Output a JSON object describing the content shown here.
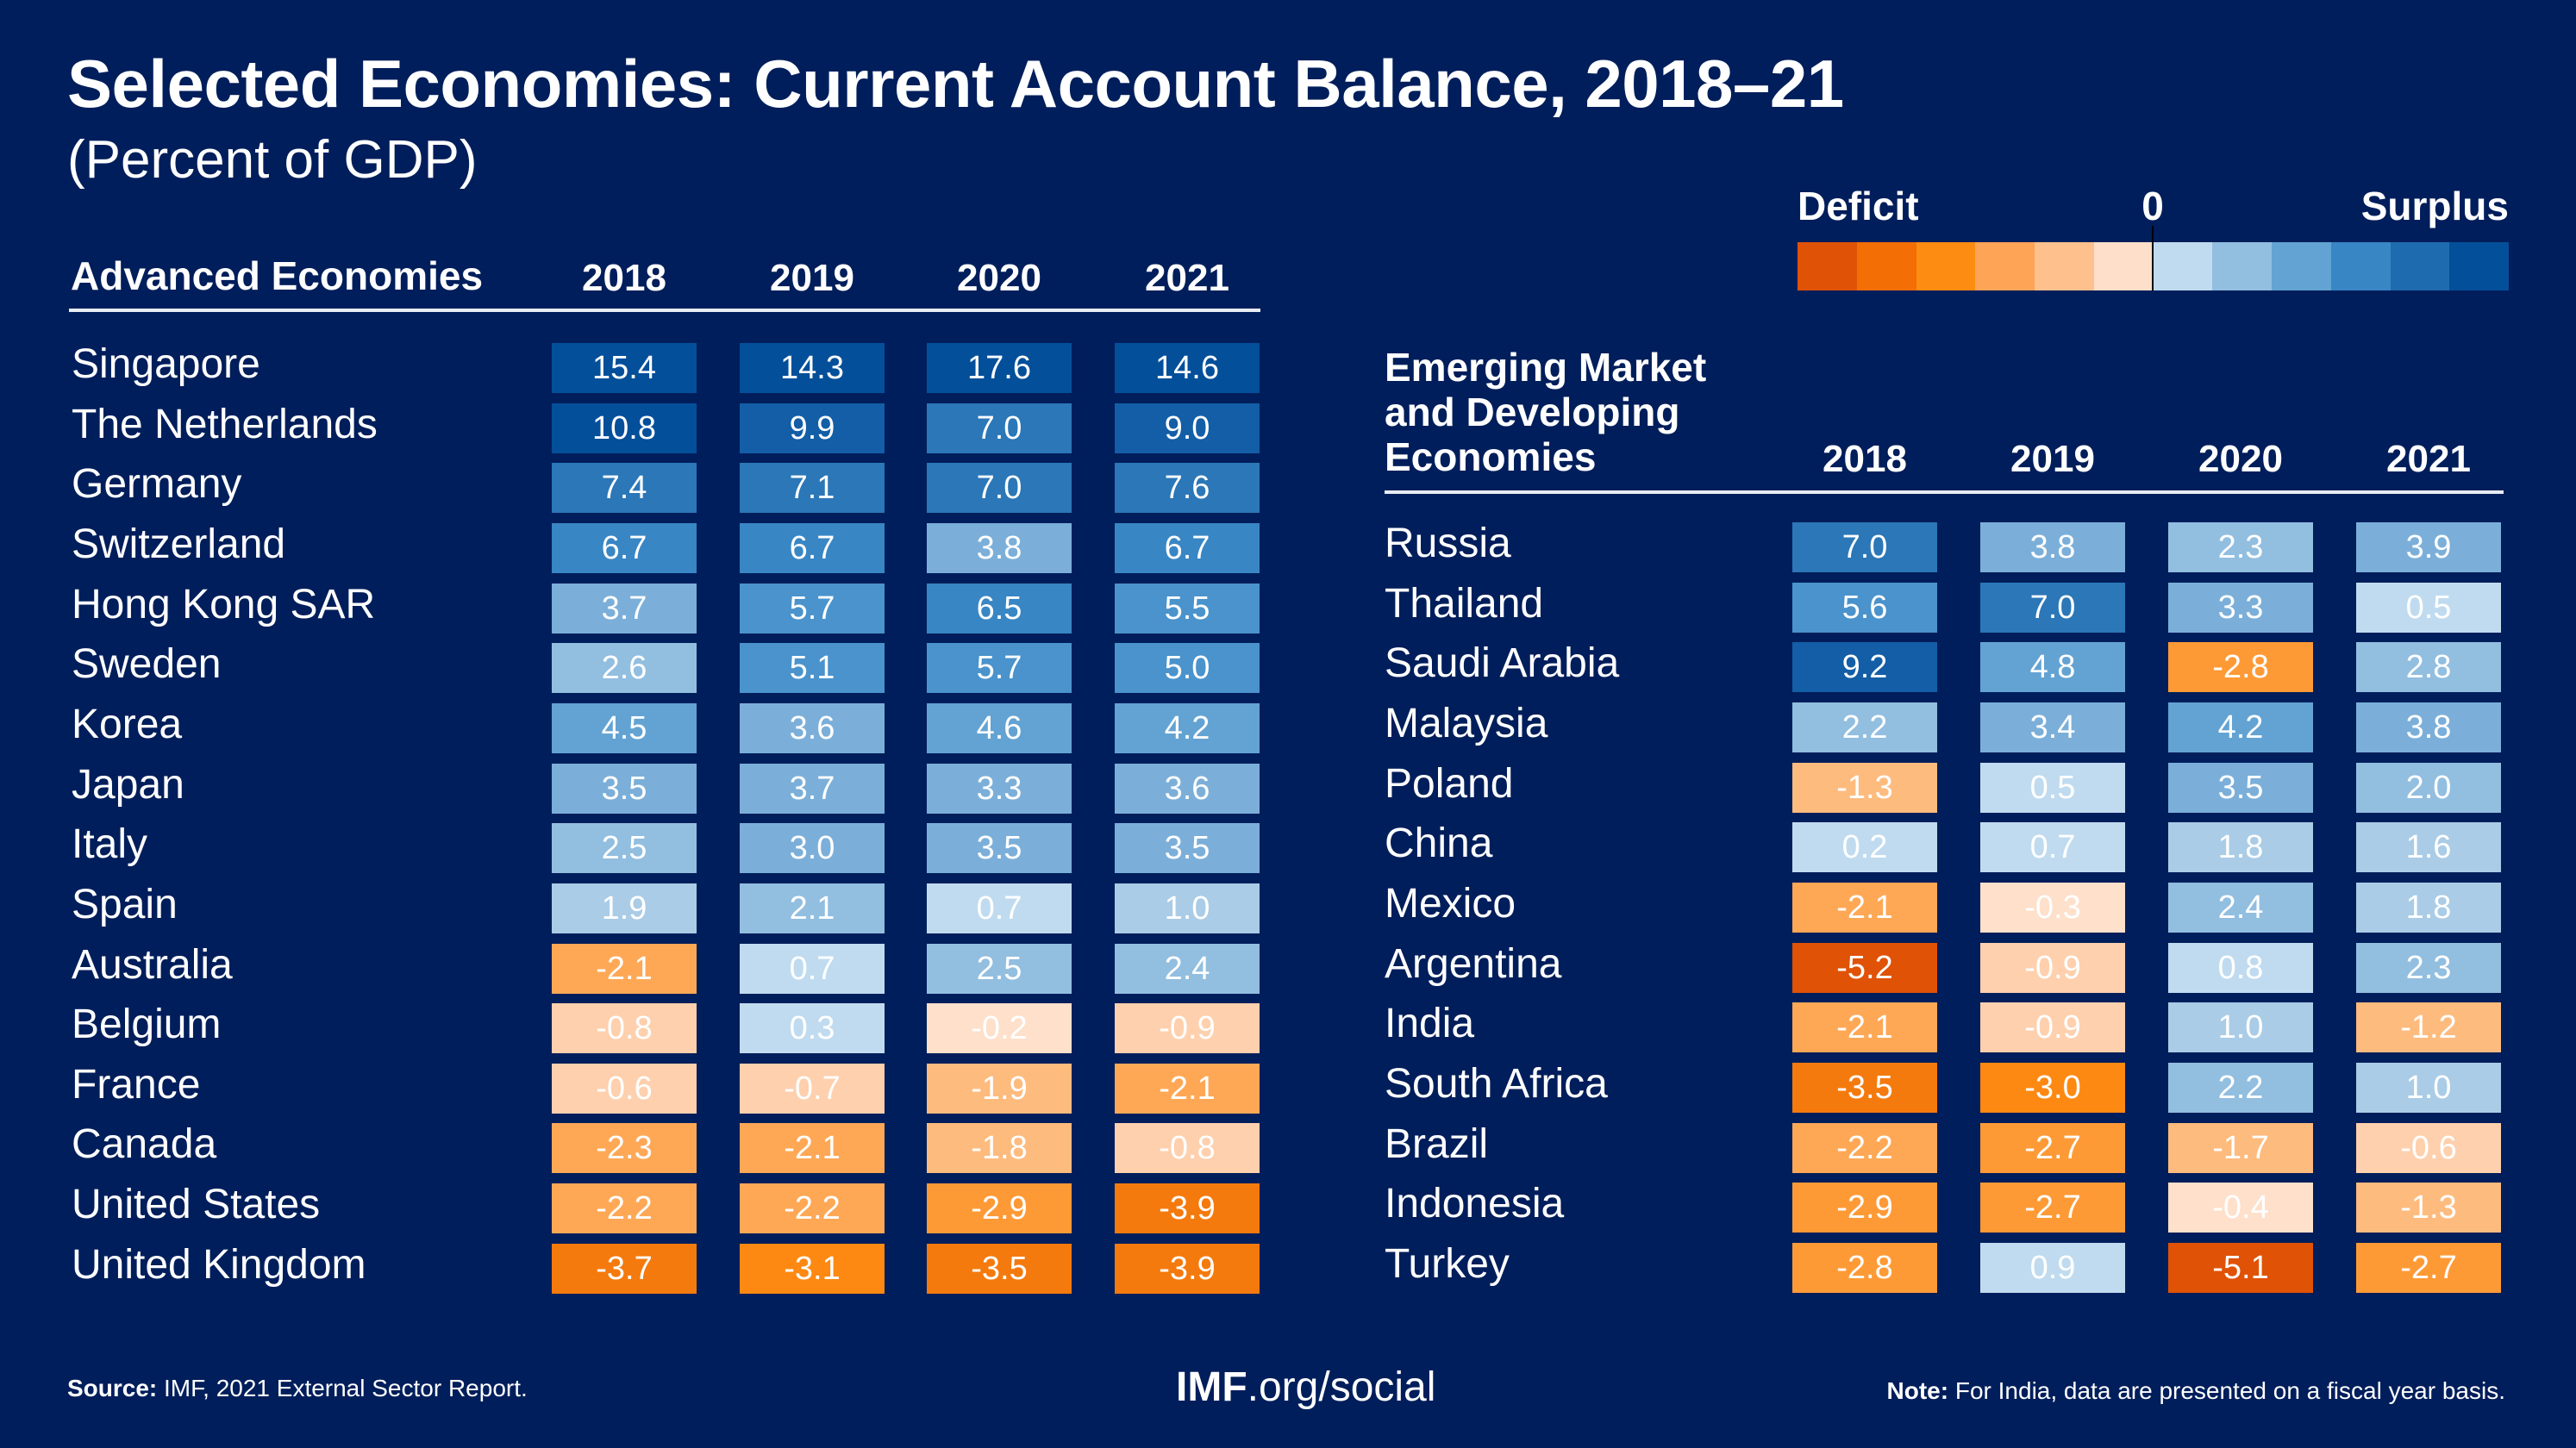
{
  "header": {
    "title": "Selected Economies: Current Account Balance, 2018–21",
    "subtitle": "(Percent of GDP)"
  },
  "legend": {
    "deficit_label": "Deficit",
    "zero_label": "0",
    "surplus_label": "Surplus",
    "colors": [
      "#e05205",
      "#f36e04",
      "#fd8c12",
      "#fda456",
      "#fec18e",
      "#fedfc9",
      "#c0dbef",
      "#92bee0",
      "#63a3d3",
      "#3986c4",
      "#1f6baf",
      "#044f9a"
    ]
  },
  "footer": {
    "source_label": "Source:",
    "source_text": "IMF, 2021 External Sector Report.",
    "link_bold": "IMF",
    "link_rest": ".org/social",
    "note_label": "Note:",
    "note_text": "For India, data are presented on a fiscal year basis."
  },
  "chart_data": {
    "type": "heatmap",
    "title": "Selected Economies: Current Account Balance, 2018–21",
    "subtitle": "(Percent of GDP)",
    "unit": "Percent of GDP",
    "years": [
      "2018",
      "2019",
      "2020",
      "2021"
    ],
    "color_scale": {
      "negative_label": "Deficit",
      "midpoint": 0,
      "positive_label": "Surplus"
    },
    "tables": [
      {
        "name": "Advanced Economies",
        "rows": [
          {
            "country": "Singapore",
            "values": [
              15.4,
              14.3,
              17.6,
              14.6
            ]
          },
          {
            "country": "The Netherlands",
            "values": [
              10.8,
              9.9,
              7.0,
              9.0
            ]
          },
          {
            "country": "Germany",
            "values": [
              7.4,
              7.1,
              7.0,
              7.6
            ]
          },
          {
            "country": "Switzerland",
            "values": [
              6.7,
              6.7,
              3.8,
              6.7
            ]
          },
          {
            "country": "Hong Kong SAR",
            "values": [
              3.7,
              5.7,
              6.5,
              5.5
            ]
          },
          {
            "country": "Sweden",
            "values": [
              2.6,
              5.1,
              5.7,
              5.0
            ]
          },
          {
            "country": "Korea",
            "values": [
              4.5,
              3.6,
              4.6,
              4.2
            ]
          },
          {
            "country": "Japan",
            "values": [
              3.5,
              3.7,
              3.3,
              3.6
            ]
          },
          {
            "country": "Italy",
            "values": [
              2.5,
              3.0,
              3.5,
              3.5
            ]
          },
          {
            "country": "Spain",
            "values": [
              1.9,
              2.1,
              0.7,
              1.0
            ]
          },
          {
            "country": "Australia",
            "values": [
              -2.1,
              0.7,
              2.5,
              2.4
            ]
          },
          {
            "country": "Belgium",
            "values": [
              -0.8,
              0.3,
              -0.2,
              -0.9
            ]
          },
          {
            "country": "France",
            "values": [
              -0.6,
              -0.7,
              -1.9,
              -2.1
            ]
          },
          {
            "country": "Canada",
            "values": [
              -2.3,
              -2.1,
              -1.8,
              -0.8
            ]
          },
          {
            "country": "United States",
            "values": [
              -2.2,
              -2.2,
              -2.9,
              -3.9
            ]
          },
          {
            "country": "United Kingdom",
            "values": [
              -3.7,
              -3.1,
              -3.5,
              -3.9
            ]
          }
        ]
      },
      {
        "name": "Emerging Market and Developing Economies",
        "name_lines": [
          "Emerging Market",
          "and Developing",
          "Economies"
        ],
        "rows": [
          {
            "country": "Russia",
            "values": [
              7.0,
              3.8,
              2.3,
              3.9
            ]
          },
          {
            "country": "Thailand",
            "values": [
              5.6,
              7.0,
              3.3,
              0.5
            ]
          },
          {
            "country": "Saudi Arabia",
            "values": [
              9.2,
              4.8,
              -2.8,
              2.8
            ]
          },
          {
            "country": "Malaysia",
            "values": [
              2.2,
              3.4,
              4.2,
              3.8
            ]
          },
          {
            "country": "Poland",
            "values": [
              -1.3,
              0.5,
              3.5,
              2.0
            ]
          },
          {
            "country": "China",
            "values": [
              0.2,
              0.7,
              1.8,
              1.6
            ]
          },
          {
            "country": "Mexico",
            "values": [
              -2.1,
              -0.3,
              2.4,
              1.8
            ]
          },
          {
            "country": "Argentina",
            "values": [
              -5.2,
              -0.9,
              0.8,
              2.3
            ]
          },
          {
            "country": "India",
            "values": [
              -2.1,
              -0.9,
              1.0,
              -1.2
            ]
          },
          {
            "country": "South Africa",
            "values": [
              -3.5,
              -3.0,
              2.2,
              1.0
            ]
          },
          {
            "country": "Brazil",
            "values": [
              -2.2,
              -2.7,
              -1.7,
              -0.6
            ]
          },
          {
            "country": "Indonesia",
            "values": [
              -2.9,
              -2.7,
              -0.4,
              -1.3
            ]
          },
          {
            "country": "Turkey",
            "values": [
              -2.8,
              0.9,
              -5.1,
              -2.7
            ]
          }
        ]
      }
    ]
  }
}
